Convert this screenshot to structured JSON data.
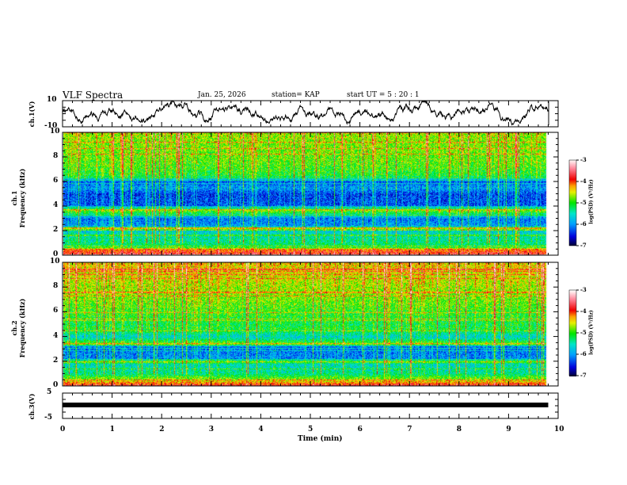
{
  "header": {
    "title": "VLF Spectra",
    "date": "Jan. 25, 2026",
    "station": "station= KAP",
    "start": "start  UT =   5  : 20 : 1"
  },
  "chart_data": [
    {
      "type": "line",
      "name": "ch1 waveform",
      "ylabel": "ch.1(V)",
      "ylim": [
        -10,
        10
      ],
      "yticks": [
        "10",
        "-10"
      ],
      "xlim": [
        0,
        10
      ],
      "xlabel": "Time  (min)",
      "note": "noisy waveform around -2 to 4 V, duration ~9.8 min"
    },
    {
      "type": "heatmap",
      "name": "ch1 spectrogram",
      "ylabel": "ch.1\nFrequency  (kHz)",
      "ylabel1": "ch.1",
      "ylabel2": "Frequency  (kHz)",
      "ylim": [
        0,
        10
      ],
      "yticks": [
        "0",
        "2",
        "4",
        "6",
        "8",
        "10"
      ],
      "colorbar": {
        "label": "log(PSD) (V²/Hz)",
        "range": [
          -7,
          -3
        ],
        "ticks": [
          "-3",
          "-4",
          "-5",
          "-6",
          "-7"
        ]
      },
      "band_profile_khz_logpsd": [
        [
          0,
          -3.6
        ],
        [
          0.5,
          -4.1
        ],
        [
          0.7,
          -5.2
        ],
        [
          1.5,
          -5.4
        ],
        [
          2.0,
          -5.6
        ],
        [
          2.2,
          -4.4
        ],
        [
          2.4,
          -5.9
        ],
        [
          3.0,
          -6.1
        ],
        [
          3.7,
          -4.6
        ],
        [
          4.0,
          -6.2
        ],
        [
          5.0,
          -6.3
        ],
        [
          5.5,
          -5.9
        ],
        [
          6.0,
          -6.2
        ],
        [
          6.5,
          -5.0
        ],
        [
          7.5,
          -4.8
        ],
        [
          10,
          -4.6
        ]
      ]
    },
    {
      "type": "heatmap",
      "name": "ch2 spectrogram",
      "ylabel1": "ch.2",
      "ylabel2": "Frequency  (kHz)",
      "ylim": [
        0,
        10
      ],
      "yticks": [
        "0",
        "2",
        "4",
        "6",
        "8",
        "10"
      ],
      "colorbar": {
        "label": "log(PSD) (V²/Hz)",
        "range": [
          -7,
          -3
        ],
        "ticks": [
          "-3",
          "-4",
          "-5",
          "-6",
          "-7"
        ]
      },
      "band_profile_khz_logpsd": [
        [
          0,
          -3.6
        ],
        [
          0.5,
          -4.6
        ],
        [
          1.0,
          -5.3
        ],
        [
          1.8,
          -5.5
        ],
        [
          2.0,
          -4.6
        ],
        [
          2.2,
          -6.0
        ],
        [
          3.2,
          -6.1
        ],
        [
          3.4,
          -4.7
        ],
        [
          4.0,
          -5.6
        ],
        [
          4.6,
          -5.0
        ],
        [
          5.0,
          -5.1
        ],
        [
          6.5,
          -4.8
        ],
        [
          10,
          -4.3
        ]
      ]
    },
    {
      "type": "line",
      "name": "ch3 waveform",
      "ylabel": "ch.3(V)",
      "ylim": [
        -5,
        5
      ],
      "yticks": [
        "5",
        "-5"
      ],
      "constant_value": -1.2
    }
  ],
  "xaxis": {
    "label": "Time  (min)",
    "ticks": [
      "0",
      "1",
      "2",
      "3",
      "4",
      "5",
      "6",
      "7",
      "8",
      "9",
      "10"
    ]
  }
}
